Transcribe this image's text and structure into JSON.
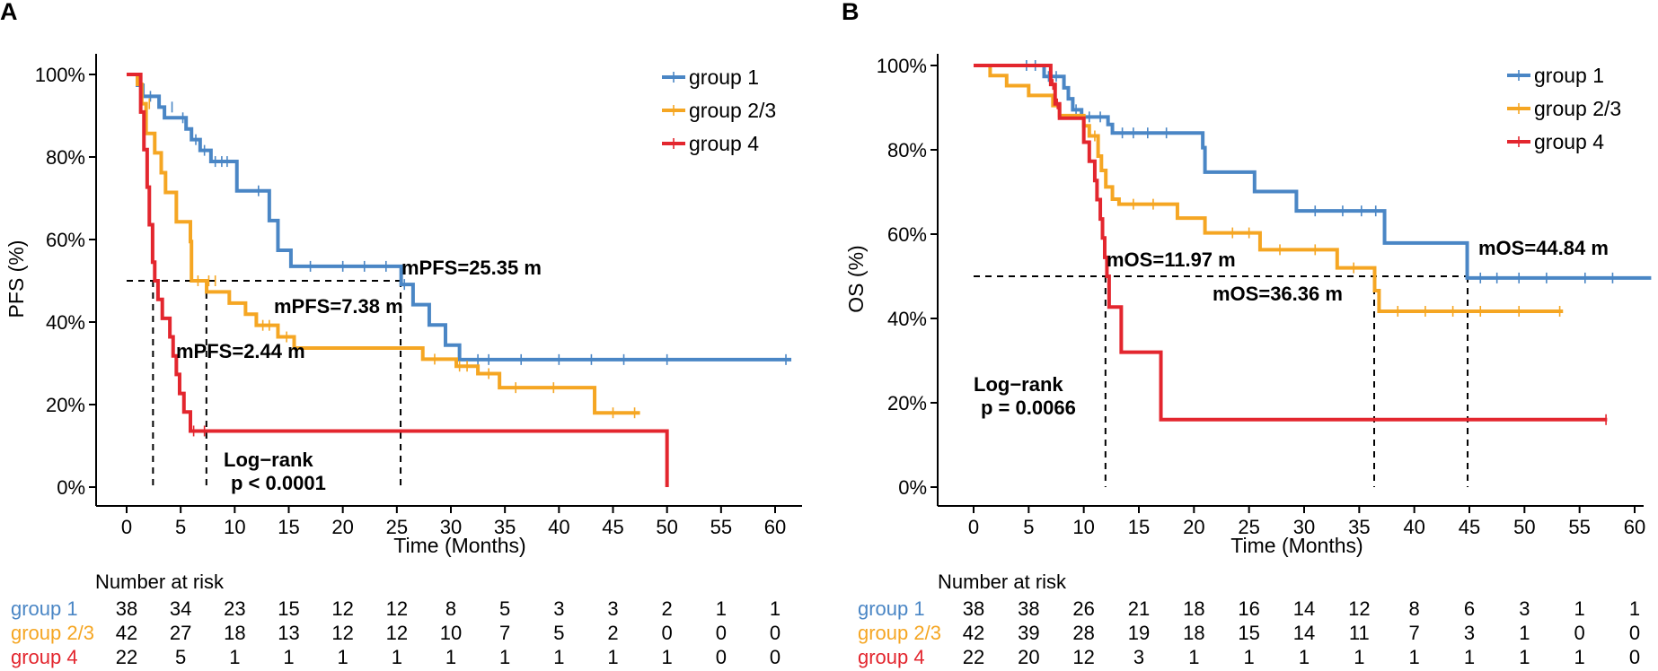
{
  "colors": {
    "group1": "#4a86c5",
    "group23": "#f5a623",
    "group4": "#e3262e"
  },
  "chart_data": [
    {
      "type": "line",
      "subtype": "kaplan-meier",
      "panel_label": "A",
      "xlabel": "Time (Months)",
      "ylabel": "PFS (%)",
      "xlim": [
        0,
        62
      ],
      "ylim": [
        0,
        100
      ],
      "x_ticks": [
        0,
        5,
        10,
        15,
        20,
        25,
        30,
        35,
        40,
        45,
        50,
        55,
        60
      ],
      "x_tick_labels": [
        "0",
        "5",
        "10",
        "15",
        "20",
        "25",
        "30",
        "35",
        "40",
        "45",
        "50",
        "55",
        "60"
      ],
      "y_ticks": [
        0,
        20,
        40,
        60,
        80,
        100
      ],
      "y_tick_labels": [
        "0%",
        "20%",
        "40%",
        "60%",
        "80%",
        "100%"
      ],
      "reference_y": 50,
      "medians": [
        {
          "series": "group 1",
          "x": 25.35,
          "label": "mPFS=25.35 m"
        },
        {
          "series": "group 2/3",
          "x": 7.38,
          "label": "mPFS=7.38 m"
        },
        {
          "series": "group 4",
          "x": 2.44,
          "label": "mPFS=2.44 m"
        }
      ],
      "test_label_line1": "Log−rank",
      "test_label_line2": "p < 0.0001",
      "legend": [
        "group 1",
        "group 2/3",
        "group 4"
      ],
      "legend_position": "top-right",
      "series": [
        {
          "name": "group 1",
          "color_key": "group1",
          "steps": [
            [
              0,
              100
            ],
            [
              1,
              97.4
            ],
            [
              1.5,
              94.7
            ],
            [
              3,
              92.1
            ],
            [
              3.5,
              89.5
            ],
            [
              5.5,
              86.8
            ],
            [
              6,
              84.2
            ],
            [
              6.8,
              81.6
            ],
            [
              7.8,
              78.9
            ],
            [
              10.2,
              71.8
            ],
            [
              13.2,
              64.6
            ],
            [
              14,
              57.4
            ],
            [
              15.2,
              53.5
            ],
            [
              25.4,
              49.1
            ],
            [
              26.5,
              44.2
            ],
            [
              28,
              39.3
            ],
            [
              29.5,
              34.4
            ],
            [
              30.8,
              30.9
            ],
            [
              61.5,
              30.9
            ]
          ],
          "censors": [
            [
              2.2,
              94.7
            ],
            [
              4.2,
              92.1
            ],
            [
              5.2,
              89.5
            ],
            [
              6.4,
              84.2
            ],
            [
              7.2,
              81.6
            ],
            [
              8.2,
              78.9
            ],
            [
              8.8,
              78.9
            ],
            [
              9.3,
              78.9
            ],
            [
              12.2,
              71.8
            ],
            [
              17,
              53.5
            ],
            [
              20,
              53.5
            ],
            [
              22,
              53.5
            ],
            [
              24,
              53.5
            ],
            [
              25.7,
              49.1
            ],
            [
              32.5,
              30.9
            ],
            [
              33.5,
              30.9
            ],
            [
              36.5,
              30.9
            ],
            [
              40,
              30.9
            ],
            [
              43,
              30.9
            ],
            [
              46,
              30.9
            ],
            [
              50,
              30.9
            ],
            [
              61,
              30.9
            ]
          ]
        },
        {
          "name": "group 2/3",
          "color_key": "group23",
          "steps": [
            [
              0,
              100
            ],
            [
              1,
              97.6
            ],
            [
              1.4,
              92.9
            ],
            [
              1.8,
              85.7
            ],
            [
              2.6,
              81
            ],
            [
              3.2,
              76.2
            ],
            [
              3.6,
              71.4
            ],
            [
              4.6,
              64.3
            ],
            [
              5.9,
              59.5
            ],
            [
              6,
              50
            ],
            [
              7.4,
              47.3
            ],
            [
              9.5,
              44.6
            ],
            [
              11,
              41.9
            ],
            [
              12,
              39.2
            ],
            [
              14,
              36.4
            ],
            [
              15.5,
              33.7
            ],
            [
              27.4,
              31
            ],
            [
              30.5,
              29.3
            ],
            [
              32.5,
              27.5
            ],
            [
              34.5,
              24.1
            ],
            [
              43.3,
              18
            ],
            [
              47.5,
              18
            ]
          ],
          "censors": [
            [
              2.1,
              92.9
            ],
            [
              6.6,
              50
            ],
            [
              7.6,
              50
            ],
            [
              8.2,
              50
            ],
            [
              12.6,
              39.2
            ],
            [
              13.2,
              39.2
            ],
            [
              14.8,
              36.4
            ],
            [
              28.5,
              31
            ],
            [
              30.8,
              29.3
            ],
            [
              31.5,
              29.3
            ],
            [
              33.5,
              27.5
            ],
            [
              36,
              24.1
            ],
            [
              39.5,
              24.1
            ],
            [
              45,
              18
            ],
            [
              47,
              18
            ]
          ]
        },
        {
          "name": "group 4",
          "color_key": "group4",
          "steps": [
            [
              0,
              100
            ],
            [
              1,
              100
            ],
            [
              1.3,
              90.9
            ],
            [
              1.6,
              81.8
            ],
            [
              1.9,
              72.7
            ],
            [
              2.1,
              63.6
            ],
            [
              2.4,
              54.5
            ],
            [
              2.6,
              50
            ],
            [
              2.9,
              45.5
            ],
            [
              3.3,
              40.9
            ],
            [
              4,
              36.4
            ],
            [
              4.3,
              31.8
            ],
            [
              4.6,
              27.3
            ],
            [
              4.9,
              22.7
            ],
            [
              5.3,
              18.2
            ],
            [
              5.9,
              13.6
            ],
            [
              50,
              13.6
            ],
            [
              50,
              0
            ]
          ],
          "censors": [
            [
              6.2,
              13.6
            ],
            [
              7.2,
              13.6
            ]
          ]
        }
      ],
      "risk_table": {
        "title": "Number at risk",
        "times": [
          0,
          5,
          10,
          15,
          20,
          25,
          30,
          35,
          40,
          45,
          50,
          55,
          60
        ],
        "rows": [
          {
            "label": "group 1",
            "color_key": "group1",
            "values": [
              "38",
              "34",
              "23",
              "15",
              "12",
              "12",
              "8",
              "5",
              "3",
              "3",
              "2",
              "1",
              "1"
            ]
          },
          {
            "label": "group 2/3",
            "color_key": "group23",
            "values": [
              "42",
              "27",
              "18",
              "13",
              "12",
              "12",
              "10",
              "7",
              "5",
              "2",
              "0",
              "0",
              "0"
            ]
          },
          {
            "label": "group 4",
            "color_key": "group4",
            "values": [
              "22",
              "5",
              "1",
              "1",
              "1",
              "1",
              "1",
              "1",
              "1",
              "1",
              "1",
              "0",
              "0"
            ]
          }
        ]
      }
    },
    {
      "type": "line",
      "subtype": "kaplan-meier",
      "panel_label": "B",
      "xlabel": "Time (Months)",
      "ylabel": "OS (%)",
      "xlim": [
        -3,
        61.5
      ],
      "ylim": [
        0,
        100
      ],
      "x_ticks": [
        0,
        5,
        10,
        15,
        20,
        25,
        30,
        35,
        40,
        45,
        50,
        55,
        60
      ],
      "x_tick_labels": [
        "0",
        "5",
        "10",
        "15",
        "20",
        "25",
        "30",
        "35",
        "40",
        "45",
        "50",
        "55",
        "60"
      ],
      "y_ticks": [
        0,
        20,
        40,
        60,
        80,
        100
      ],
      "y_tick_labels": [
        "0%",
        "20%",
        "40%",
        "60%",
        "80%",
        "100%"
      ],
      "reference_y": 50,
      "medians": [
        {
          "series": "group 1",
          "x": 44.84,
          "label": "mOS=44.84 m"
        },
        {
          "series": "group 2/3",
          "x": 36.36,
          "label": "mOS=36.36 m"
        },
        {
          "series": "group 4",
          "x": 11.97,
          "label": "mOS=11.97 m"
        }
      ],
      "test_label_line1": "Log−rank",
      "test_label_line2": "p = 0.0066",
      "legend": [
        "group 1",
        "group 2/3",
        "group 4"
      ],
      "legend_position": "top-right",
      "series": [
        {
          "name": "group 1",
          "color_key": "group1",
          "steps": [
            [
              0,
              100
            ],
            [
              6.2,
              100
            ],
            [
              6.4,
              97.4
            ],
            [
              8.2,
              94.7
            ],
            [
              8.6,
              92.1
            ],
            [
              9,
              89.5
            ],
            [
              9.8,
              87.8
            ],
            [
              12.2,
              86
            ],
            [
              12.6,
              84
            ],
            [
              20.8,
              80.5
            ],
            [
              21,
              74.7
            ],
            [
              25.5,
              70.1
            ],
            [
              29.3,
              65.5
            ],
            [
              37.3,
              57.9
            ],
            [
              44.8,
              49.6
            ],
            [
              61.5,
              49.6
            ]
          ],
          "censors": [
            [
              4.8,
              100
            ],
            [
              5.6,
              100
            ],
            [
              6.8,
              97.4
            ],
            [
              7.5,
              97.4
            ],
            [
              9.3,
              89.5
            ],
            [
              10.5,
              87.8
            ],
            [
              11.5,
              87.8
            ],
            [
              13.5,
              84
            ],
            [
              14.5,
              84
            ],
            [
              15.8,
              84
            ],
            [
              17.5,
              84
            ],
            [
              31,
              65.5
            ],
            [
              33.5,
              65.5
            ],
            [
              35.2,
              65.5
            ],
            [
              36.5,
              65.5
            ],
            [
              46,
              49.6
            ],
            [
              47.5,
              49.6
            ],
            [
              49.5,
              49.6
            ],
            [
              52,
              49.6
            ],
            [
              55.5,
              49.6
            ],
            [
              58,
              49.6
            ]
          ]
        },
        {
          "name": "group 2/3",
          "color_key": "group23",
          "steps": [
            [
              0,
              100
            ],
            [
              1.5,
              97.6
            ],
            [
              3,
              95.2
            ],
            [
              5,
              92.9
            ],
            [
              7.2,
              90.5
            ],
            [
              7.8,
              88.1
            ],
            [
              10,
              85.7
            ],
            [
              10.5,
              83.3
            ],
            [
              11.3,
              78.5
            ],
            [
              11.6,
              75.1
            ],
            [
              12,
              71.2
            ],
            [
              12.6,
              68.3
            ],
            [
              13.2,
              67.1
            ],
            [
              18.5,
              63.8
            ],
            [
              21,
              60.3
            ],
            [
              26,
              56.3
            ],
            [
              33,
              52
            ],
            [
              36.4,
              46.6
            ],
            [
              36.8,
              41.7
            ],
            [
              53.5,
              41.7
            ]
          ],
          "censors": [
            [
              11,
              83.3
            ],
            [
              14.5,
              67.1
            ],
            [
              16.3,
              67.1
            ],
            [
              23.5,
              60.3
            ],
            [
              25,
              60.3
            ],
            [
              27.8,
              56.3
            ],
            [
              31,
              56.3
            ],
            [
              34.5,
              52
            ],
            [
              38.5,
              41.7
            ],
            [
              41,
              41.7
            ],
            [
              43.5,
              41.7
            ],
            [
              46,
              41.7
            ],
            [
              49.5,
              41.7
            ],
            [
              53.2,
              41.7
            ]
          ]
        },
        {
          "name": "group 4",
          "color_key": "group4",
          "steps": [
            [
              0,
              100
            ],
            [
              6.8,
              100
            ],
            [
              7,
              95.5
            ],
            [
              7.4,
              90.9
            ],
            [
              7.8,
              87.5
            ],
            [
              10,
              81.8
            ],
            [
              10.5,
              77.3
            ],
            [
              11,
              72.7
            ],
            [
              11.2,
              68.2
            ],
            [
              11.5,
              63.6
            ],
            [
              11.7,
              59.1
            ],
            [
              11.9,
              54.5
            ],
            [
              12.1,
              50
            ],
            [
              12.3,
              42.7
            ],
            [
              13.4,
              32
            ],
            [
              17,
              16
            ],
            [
              57.5,
              16
            ]
          ],
          "censors": [
            [
              7.2,
              95.5
            ],
            [
              7.6,
              90.9
            ],
            [
              57.4,
              16
            ]
          ]
        }
      ],
      "risk_table": {
        "title": "Number at risk",
        "times": [
          0,
          5,
          10,
          15,
          20,
          25,
          30,
          35,
          40,
          45,
          50,
          55,
          60
        ],
        "rows": [
          {
            "label": "group 1",
            "color_key": "group1",
            "values": [
              "38",
              "38",
              "26",
              "21",
              "18",
              "16",
              "14",
              "12",
              "8",
              "6",
              "3",
              "1",
              "1"
            ]
          },
          {
            "label": "group 2/3",
            "color_key": "group23",
            "values": [
              "42",
              "39",
              "28",
              "19",
              "18",
              "15",
              "14",
              "11",
              "7",
              "3",
              "1",
              "0",
              "0"
            ]
          },
          {
            "label": "group 4",
            "color_key": "group4",
            "values": [
              "22",
              "20",
              "12",
              "3",
              "1",
              "1",
              "1",
              "1",
              "1",
              "1",
              "1",
              "1",
              "0"
            ]
          }
        ]
      }
    }
  ]
}
